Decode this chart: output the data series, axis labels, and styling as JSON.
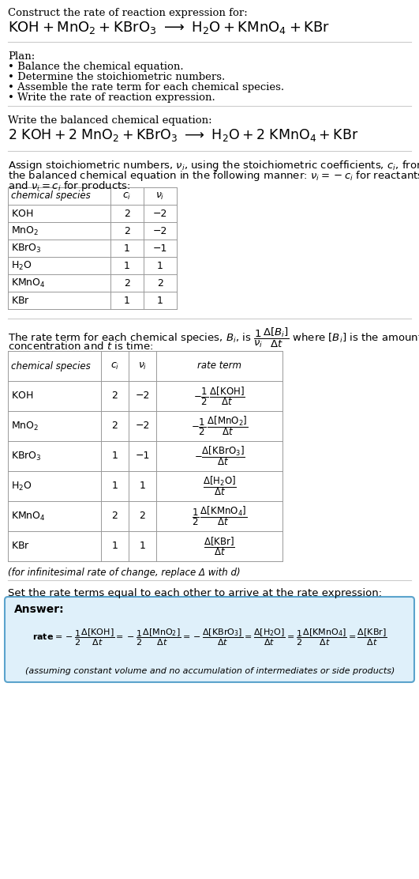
{
  "bg_color": "#ffffff",
  "text_color": "#000000",
  "title_line1": "Construct the rate of reaction expression for:",
  "plan_header": "Plan:",
  "plan_items": [
    "• Balance the chemical equation.",
    "• Determine the stoichiometric numbers.",
    "• Assemble the rate term for each chemical species.",
    "• Write the rate of reaction expression."
  ],
  "balanced_header": "Write the balanced chemical equation:",
  "table1_rows": [
    [
      "KOH",
      "2",
      "−2"
    ],
    [
      "MnO_2",
      "2",
      "−2"
    ],
    [
      "KBrO_3",
      "1",
      "−1"
    ],
    [
      "H_2O",
      "1",
      "1"
    ],
    [
      "KMnO_4",
      "2",
      "2"
    ],
    [
      "KBr",
      "1",
      "1"
    ]
  ],
  "table2_rows": [
    [
      "KOH",
      "2",
      "−2"
    ],
    [
      "MnO_2",
      "2",
      "−2"
    ],
    [
      "KBrO_3",
      "1",
      "−1"
    ],
    [
      "H_2O",
      "1",
      "1"
    ],
    [
      "KMnO_4",
      "2",
      "2"
    ],
    [
      "KBr",
      "1",
      "1"
    ]
  ],
  "infinitesimal_note": "(for infinitesimal rate of change, replace Δ with d)",
  "set_rate_text": "Set the rate terms equal to each other to arrive at the rate expression:",
  "answer_box_color": "#dff0fa",
  "answer_border_color": "#5ba3cc",
  "answer_label": "Answer:",
  "footnote": "(assuming constant volume and no accumulation of intermediates or side products)"
}
